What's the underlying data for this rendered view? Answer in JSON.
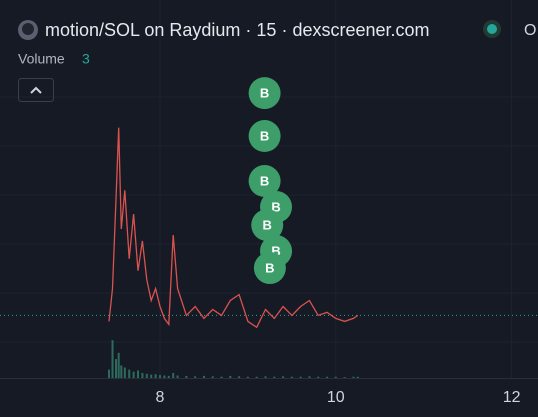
{
  "chart_data": {
    "type": "line",
    "title": "motion/SOL on Raydium · 15 · dexscreener.com",
    "ohlc_label": "O",
    "volume_label": "Volume",
    "volume_value": "3",
    "x": [
      7.42,
      7.46,
      7.5,
      7.53,
      7.56,
      7.6,
      7.65,
      7.7,
      7.75,
      7.8,
      7.85,
      7.9,
      7.95,
      8.0,
      8.05,
      8.1,
      8.15,
      8.2,
      8.3,
      8.4,
      8.5,
      8.6,
      8.7,
      8.8,
      8.9,
      9.0,
      9.1,
      9.2,
      9.3,
      9.4,
      9.5,
      9.6,
      9.7,
      9.8,
      9.9,
      10.0,
      10.1,
      10.2,
      10.25
    ],
    "series": [
      {
        "name": "Price",
        "color": "#d9534f",
        "values": [
          19,
          30,
          60,
          84,
          50,
          63,
          40,
          55,
          36,
          46,
          33,
          26,
          30,
          24,
          20,
          18,
          48,
          30,
          21,
          24,
          20,
          23,
          21,
          26,
          28,
          19,
          17,
          23,
          20,
          24,
          21,
          24,
          26,
          21,
          22,
          20,
          19,
          20,
          21
        ]
      },
      {
        "name": "Volume",
        "color": "#2e6b5f",
        "axis": "y2",
        "values": [
          20,
          90,
          45,
          60,
          30,
          25,
          20,
          15,
          18,
          12,
          10,
          8,
          9,
          7,
          6,
          5,
          12,
          6,
          5,
          4,
          5,
          4,
          3,
          5,
          4,
          3,
          3,
          4,
          3,
          4,
          3,
          3,
          4,
          3,
          3,
          3,
          2,
          3,
          3
        ]
      }
    ],
    "markers": [
      {
        "x": 9.19,
        "y": 95.6,
        "label": "B"
      },
      {
        "x": 9.19,
        "y": 81.2,
        "label": "B"
      },
      {
        "x": 9.19,
        "y": 66.1,
        "label": "B"
      },
      {
        "x": 9.32,
        "y": 57.4,
        "label": "B"
      },
      {
        "x": 9.22,
        "y": 51.3,
        "label": "B"
      },
      {
        "x": 9.32,
        "y": 42.6,
        "label": "B"
      },
      {
        "x": 9.25,
        "y": 36.9,
        "label": "B"
      }
    ],
    "marker_color": "#3d9e6a",
    "price_line": 21,
    "xlim": [
      6.18,
      12.3
    ],
    "xticks": [
      8,
      10,
      12
    ],
    "ylim": [
      0,
      100
    ],
    "y2lim": [
      0,
      100
    ],
    "grid": true
  }
}
